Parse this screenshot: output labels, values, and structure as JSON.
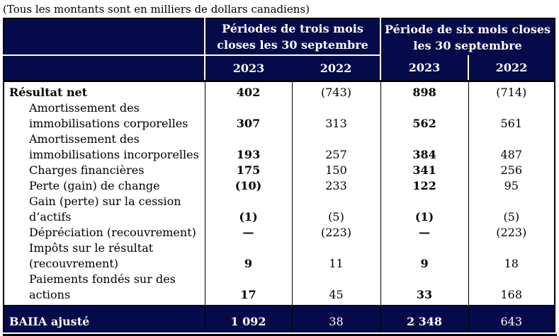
{
  "note": "(Tous les montants sont en milliers de dollars canadiens)",
  "colors": {
    "navy": "#050b4a",
    "line_black": "#000000",
    "header_text": "#ffffff"
  },
  "table": {
    "col_groups": [
      {
        "label": "Périodes de trois mois\ncloses les 30 septembre"
      },
      {
        "label": "Période de six mois closes\nles 30 septembre"
      }
    ],
    "years": [
      "2023",
      "2022",
      "2023",
      "2022"
    ],
    "bold_year_columns": [
      0,
      2
    ],
    "rows": [
      {
        "label": "Résultat net",
        "bold": true,
        "indent": false,
        "values": [
          "402",
          "(743)",
          "898",
          "(714)"
        ]
      },
      {
        "label": "Amortissement des\nimmobilisations corporelles",
        "bold": false,
        "indent": true,
        "values": [
          "307",
          "313",
          "562",
          "561"
        ]
      },
      {
        "label": "Amortissement des\nimmobilisations incorporelles",
        "bold": false,
        "indent": true,
        "values": [
          "193",
          "257",
          "384",
          "487"
        ]
      },
      {
        "label": "Charges financières",
        "bold": false,
        "indent": true,
        "values": [
          "175",
          "150",
          "341",
          "256"
        ]
      },
      {
        "label": "Perte (gain) de change",
        "bold": false,
        "indent": true,
        "values": [
          "(10)",
          "233",
          "122",
          "95"
        ]
      },
      {
        "label": "Gain (perte) sur la cession\nd’actifs",
        "bold": false,
        "indent": true,
        "values": [
          "(1)",
          "(5)",
          "(1)",
          "(5)"
        ]
      },
      {
        "label": "Dépréciation (recouvrement)",
        "bold": false,
        "indent": true,
        "values": [
          "—",
          "(223)",
          "—",
          "(223)"
        ]
      },
      {
        "label": "Impôts sur le résultat\n(recouvrement)",
        "bold": false,
        "indent": true,
        "values": [
          "9",
          "11",
          "9",
          "18"
        ]
      },
      {
        "label": "Paiements fondés sur des actions",
        "bold": false,
        "indent": true,
        "values": [
          "17",
          "45",
          "33",
          "168"
        ]
      }
    ],
    "footer": {
      "label": "BAIIA ajusté",
      "values": [
        "1 092",
        "38",
        "2 348",
        "643"
      ]
    }
  }
}
